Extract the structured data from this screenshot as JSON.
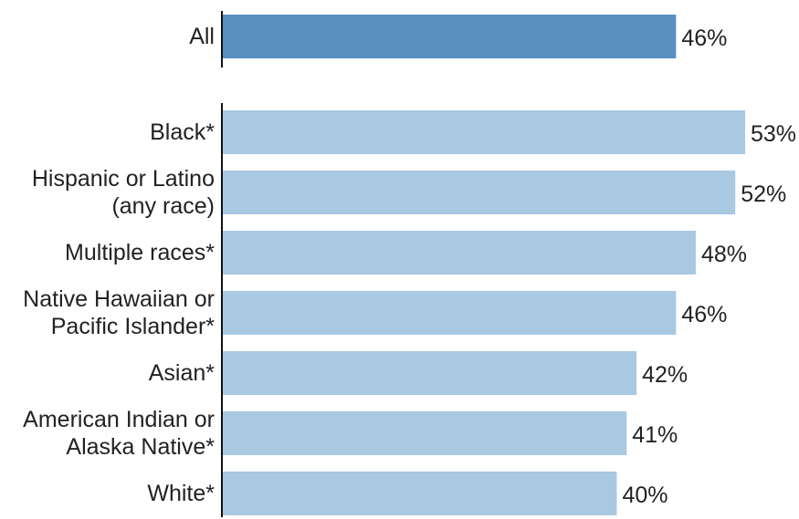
{
  "chart_data": [
    {
      "type": "bar",
      "orientation": "horizontal",
      "categories": [
        "All"
      ],
      "values": [
        46
      ],
      "value_labels": [
        "46%"
      ],
      "xlim": [
        0,
        53
      ],
      "color": "#5890c0",
      "grid": false,
      "legend": "none"
    },
    {
      "type": "bar",
      "orientation": "horizontal",
      "categories": [
        [
          "Black*"
        ],
        [
          "Hispanic or Latino",
          "(any race)"
        ],
        [
          "Multiple races*"
        ],
        [
          "Native Hawaiian or",
          "Pacific Islander*"
        ],
        [
          "Asian*"
        ],
        [
          "American Indian or",
          "Alaska Native*"
        ],
        [
          "White*"
        ]
      ],
      "values": [
        53,
        52,
        48,
        46,
        42,
        41,
        40
      ],
      "value_labels": [
        "53%",
        "52%",
        "48%",
        "46%",
        "42%",
        "41%",
        "40%"
      ],
      "xlim": [
        0,
        53
      ],
      "color": "#a9c8e2",
      "grid": false,
      "legend": "none"
    }
  ]
}
